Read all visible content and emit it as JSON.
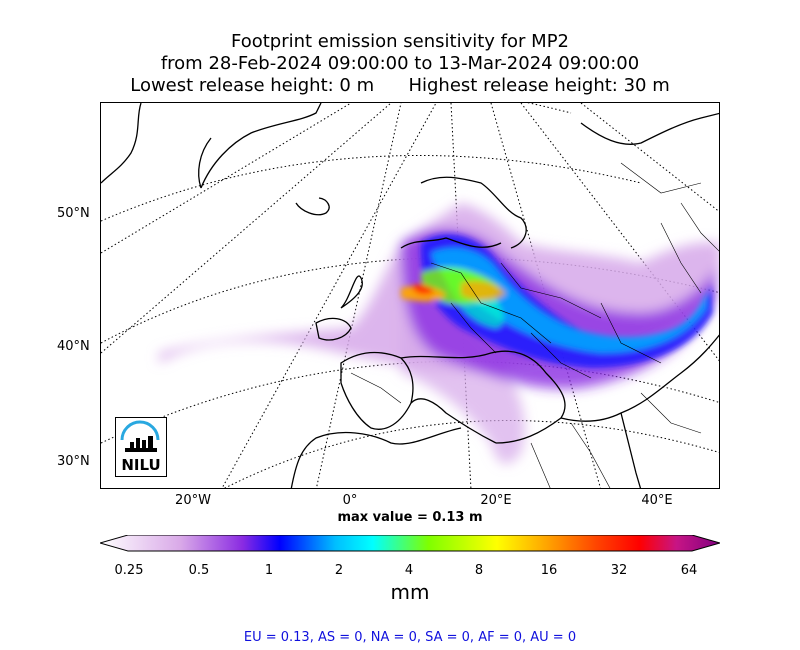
{
  "title": {
    "line1": "Footprint emission sensitivity for MP2",
    "line2": "from 28-Feb-2024 09:00:00 to 13-Mar-2024 09:00:00",
    "line3": "Lowest release height: 0 m      Highest release height: 30 m"
  },
  "map": {
    "lat_labels": [
      "50°N",
      "40°N",
      "30°N"
    ],
    "lon_labels": [
      "20°W",
      "0°",
      "20°E",
      "40°E"
    ],
    "logo_text": "NILU"
  },
  "max_value": "max value = 0.13 m",
  "colorbar": {
    "ticks": [
      "0.25",
      "0.5",
      "1",
      "2",
      "4",
      "8",
      "16",
      "32",
      "64"
    ],
    "unit": "mm",
    "colors": [
      "#ffffff",
      "#d9a9e8",
      "#8a2be2",
      "#0000ff",
      "#00bfff",
      "#00ffff",
      "#7fff00",
      "#ffff00",
      "#ffa500",
      "#ff4500",
      "#ff0000",
      "#c71585",
      "#800080"
    ]
  },
  "regions": "EU = 0.13,  AS = 0,  NA = 0,  SA = 0,  AF = 0,  AU = 0"
}
